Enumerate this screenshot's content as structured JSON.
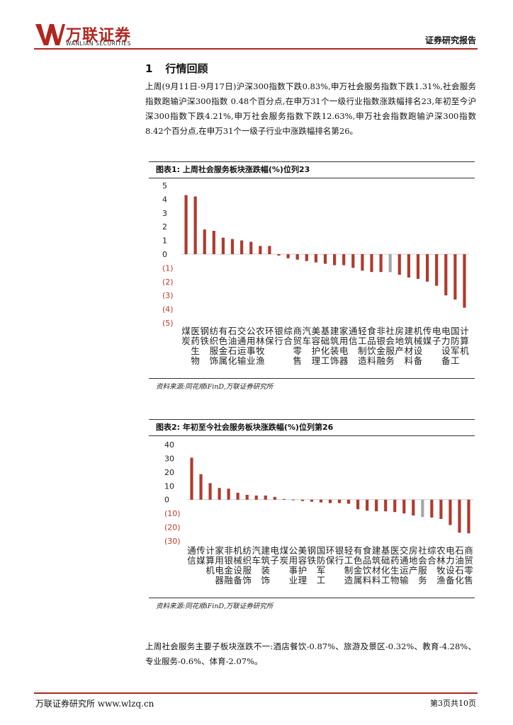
{
  "header": {
    "logo_cn": "万联证券",
    "logo_en": "WANLIAN SECURITIES",
    "report_type": "证券研究报告",
    "brand_color": "#b0261f"
  },
  "section": {
    "number": "1",
    "title": "行情回顾"
  },
  "paragraph1": "上周(9月11日-9月17日)沪深300指数下跌0.83%,申万社会服务指数下跌1.31%,社会服务指数跑输沪深300指数 0.48个百分点,在申万31个一级行业指数涨跌幅排名23,年初至今沪深300指数下跌4.21%,申万社会服务指数下跌12.63%,申万社会指数跑输沪深300指数8.42个百分点,在申万31个一级子行业中涨跌幅排名第26。",
  "figure1": {
    "title": "图表1:  上周社会服务板块涨跌幅(%)位列23",
    "source": "资料来源:同花顺iFinD,万联证券研究所"
  },
  "figure2": {
    "title": "图表2:  年初至今社会服务板块涨跌幅(%)位列第26",
    "source": "资料来源:同花顺iFinD,万联证券研究所"
  },
  "chart_data": [
    {
      "type": "bar",
      "title": "上周社会服务板块涨跌幅(%)位列23",
      "categories": [
        "煤炭",
        "医药生物",
        "钢铁",
        "纺织服饰",
        "有色金属",
        "石油石化",
        "交通运输",
        "公用事业",
        "农林牧渔",
        "环保",
        "银行",
        "综合",
        "商贸零售",
        "汽车",
        "美容护理",
        "基础化工",
        "建筑装饰",
        "家用电器",
        "通信",
        "轻工制造",
        "食品饮料",
        "非银金融",
        "社会服务",
        "房地产",
        "建筑材料",
        "机械设备",
        "传媒",
        "电子",
        "电力设备",
        "国防军工",
        "计算机"
      ],
      "values": [
        4.3,
        4.2,
        1.8,
        1.7,
        1.2,
        1.1,
        1.0,
        0.9,
        0.6,
        0.6,
        -0.1,
        -0.3,
        -0.4,
        -0.5,
        -0.6,
        -0.7,
        -0.8,
        -0.8,
        -1.0,
        -1.2,
        -1.3,
        -1.3,
        -1.31,
        -1.5,
        -1.7,
        -1.8,
        -2.0,
        -2.3,
        -3.0,
        -3.3,
        -3.9
      ],
      "highlight_index": 22,
      "ylim": [
        -5,
        5
      ],
      "ticks": [
        5,
        4,
        3,
        2,
        1,
        0,
        -1,
        -2,
        -3,
        -4,
        -5
      ],
      "tick_labels": [
        "5",
        "4",
        "3",
        "2",
        "1",
        "0",
        "(1)",
        "(2)",
        "(3)",
        "(4)",
        "(5)"
      ],
      "bar_color": "#b03a2e",
      "highlight_color": "#a6a6a6",
      "negative_label_color": "#c0392b",
      "grid": false
    },
    {
      "type": "bar",
      "title": "年初至今社会服务板块涨跌幅(%)位列第26",
      "categories": [
        "通信",
        "传媒",
        "计算机",
        "家用电器",
        "非银金融",
        "机械设备",
        "纺织服饰",
        "汽车",
        "建筑装饰",
        "电子",
        "煤炭",
        "公用事业",
        "美容护理",
        "钢铁",
        "国防军工",
        "环保",
        "银行",
        "轻工制造",
        "有色金属",
        "食品饮料",
        "建筑材料",
        "基础化工",
        "医药生物",
        "交通运输",
        "房地产",
        "社会服务",
        "综合",
        "农林牧渔",
        "电力设备",
        "石油石化",
        "商贸零售"
      ],
      "values": [
        30.5,
        18.5,
        12.0,
        8.5,
        8.0,
        5.0,
        3.5,
        3.0,
        3.0,
        2.0,
        0.5,
        -0.5,
        -1.0,
        -1.5,
        -2.0,
        -2.5,
        -2.5,
        -3.0,
        -7.0,
        -8.0,
        -8.5,
        -8.5,
        -9.0,
        -10.0,
        -11.5,
        -12.63,
        -13.0,
        -14.0,
        -18.5,
        -24.0,
        -24.5
      ],
      "highlight_index": 25,
      "ylim": [
        -30,
        40
      ],
      "ticks": [
        40,
        30,
        20,
        10,
        0,
        -10,
        -20,
        -30
      ],
      "tick_labels": [
        "40",
        "30",
        "20",
        "10",
        "0",
        "(10)",
        "(20)",
        "(30)"
      ],
      "bar_color": "#b03a2e",
      "highlight_color": "#a6a6a6",
      "negative_label_color": "#c0392b",
      "grid": false
    }
  ],
  "paragraph2": "上周社会服务主要子板块涨跌不一:酒店餐饮-0.87%、旅游及景区-0.32%、教育-4.28%、专业服务-0.6%、体育-2.07%。",
  "footer": {
    "left": "万联证券研究所 www.wlzq.cn",
    "right": "第3页共10页"
  }
}
